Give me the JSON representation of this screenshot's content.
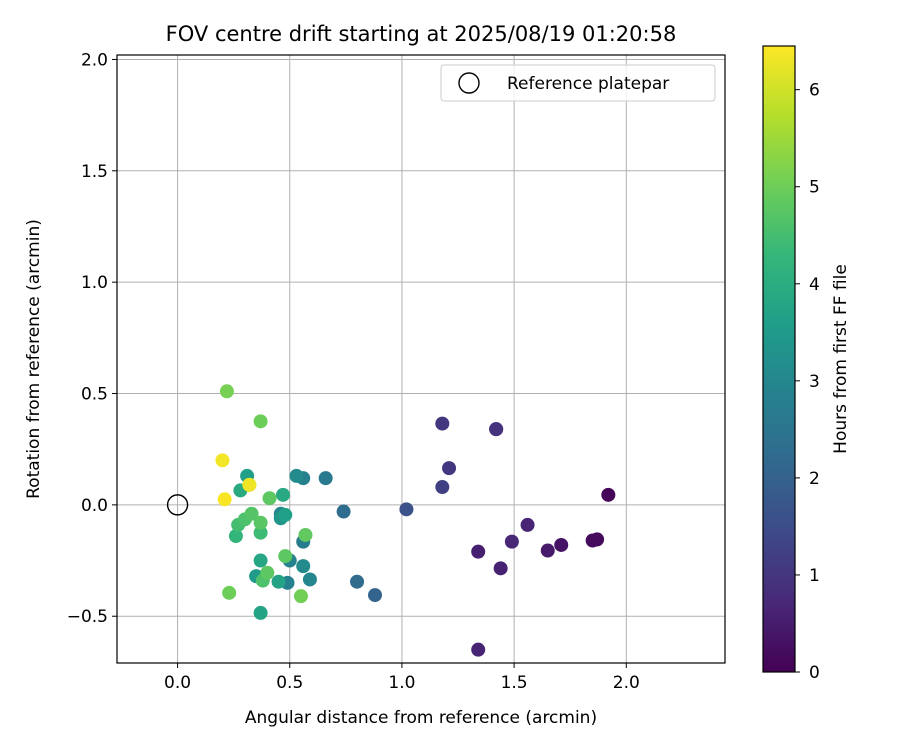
{
  "chart_data": {
    "type": "scatter",
    "title": "FOV centre drift starting at 2025/08/19 01:20:58",
    "xlabel": "Angular distance from reference (arcmin)",
    "ylabel": "Rotation from reference (arcmin)",
    "xlim": [
      -0.27,
      2.44
    ],
    "ylim": [
      -0.71,
      2.02
    ],
    "xticks": [
      0.0,
      0.5,
      1.0,
      1.5,
      2.0
    ],
    "xtick_labels": [
      "0.0",
      "0.5",
      "1.0",
      "1.5",
      "2.0"
    ],
    "yticks": [
      -0.5,
      0.0,
      0.5,
      1.0,
      1.5,
      2.0
    ],
    "ytick_labels": [
      "−0.5",
      "0.0",
      "0.5",
      "1.0",
      "1.5",
      "2.0"
    ],
    "grid": true,
    "legend": {
      "position": "upper right",
      "entries": [
        "Reference platepar"
      ]
    },
    "reference_point": {
      "name": "Reference platepar",
      "x": 0.0,
      "y": 0.0,
      "marker": "open circle",
      "color": "#000000"
    },
    "colorbar": {
      "label": "Hours from first FF file",
      "range": [
        0,
        6.45
      ],
      "ticks": [
        0,
        1,
        2,
        3,
        4,
        5,
        6
      ],
      "tick_labels": [
        "0",
        "1",
        "2",
        "3",
        "4",
        "5",
        "6"
      ],
      "colormap": "viridis"
    },
    "series": [
      {
        "marker": "filled circle",
        "points": [
          {
            "x": 1.92,
            "y": 0.045,
            "c": 0.1
          },
          {
            "x": 1.87,
            "y": -0.155,
            "c": 0.15
          },
          {
            "x": 1.85,
            "y": -0.16,
            "c": 0.2
          },
          {
            "x": 1.71,
            "y": -0.18,
            "c": 0.35
          },
          {
            "x": 1.65,
            "y": -0.205,
            "c": 0.45
          },
          {
            "x": 1.56,
            "y": -0.09,
            "c": 0.65
          },
          {
            "x": 1.49,
            "y": -0.165,
            "c": 0.7
          },
          {
            "x": 1.44,
            "y": -0.285,
            "c": 0.6
          },
          {
            "x": 1.42,
            "y": 0.34,
            "c": 0.75
          },
          {
            "x": 1.42,
            "y": 0.34,
            "c": 0.95
          },
          {
            "x": 1.34,
            "y": -0.21,
            "c": 0.55
          },
          {
            "x": 1.34,
            "y": -0.65,
            "c": 0.65
          },
          {
            "x": 1.21,
            "y": 0.165,
            "c": 1.05
          },
          {
            "x": 1.18,
            "y": 0.365,
            "c": 1.05
          },
          {
            "x": 1.18,
            "y": 0.08,
            "c": 1.2
          },
          {
            "x": 1.02,
            "y": -0.02,
            "c": 1.6
          },
          {
            "x": 0.88,
            "y": -0.405,
            "c": 2.05
          },
          {
            "x": 0.8,
            "y": -0.345,
            "c": 2.25
          },
          {
            "x": 0.74,
            "y": -0.03,
            "c": 2.3
          },
          {
            "x": 0.66,
            "y": 0.12,
            "c": 2.65
          },
          {
            "x": 0.59,
            "y": -0.335,
            "c": 3.0
          },
          {
            "x": 0.56,
            "y": 0.12,
            "c": 2.8
          },
          {
            "x": 0.56,
            "y": -0.165,
            "c": 2.7
          },
          {
            "x": 0.56,
            "y": -0.275,
            "c": 3.1
          },
          {
            "x": 0.53,
            "y": 0.13,
            "c": 3.1
          },
          {
            "x": 0.5,
            "y": -0.25,
            "c": 2.9
          },
          {
            "x": 0.49,
            "y": -0.35,
            "c": 2.85
          },
          {
            "x": 0.46,
            "y": -0.04,
            "c": 3.0
          },
          {
            "x": 0.46,
            "y": -0.06,
            "c": 3.4
          },
          {
            "x": 0.48,
            "y": -0.045,
            "c": 3.6
          },
          {
            "x": 0.47,
            "y": 0.045,
            "c": 3.9
          },
          {
            "x": 0.45,
            "y": -0.345,
            "c": 3.7
          },
          {
            "x": 0.35,
            "y": -0.32,
            "c": 3.5
          },
          {
            "x": 0.37,
            "y": -0.485,
            "c": 3.75
          },
          {
            "x": 0.37,
            "y": -0.25,
            "c": 3.8
          },
          {
            "x": 0.31,
            "y": 0.13,
            "c": 3.6
          },
          {
            "x": 0.28,
            "y": 0.065,
            "c": 3.9
          },
          {
            "x": 0.26,
            "y": -0.14,
            "c": 4.2
          },
          {
            "x": 0.27,
            "y": -0.09,
            "c": 4.5
          },
          {
            "x": 0.3,
            "y": -0.065,
            "c": 4.6
          },
          {
            "x": 0.33,
            "y": -0.04,
            "c": 4.7
          },
          {
            "x": 0.37,
            "y": -0.125,
            "c": 4.4
          },
          {
            "x": 0.37,
            "y": -0.08,
            "c": 4.75
          },
          {
            "x": 0.38,
            "y": -0.34,
            "c": 4.6
          },
          {
            "x": 0.4,
            "y": -0.305,
            "c": 4.8
          },
          {
            "x": 0.41,
            "y": 0.03,
            "c": 4.8
          },
          {
            "x": 0.48,
            "y": -0.23,
            "c": 4.8
          },
          {
            "x": 0.57,
            "y": -0.135,
            "c": 4.85
          },
          {
            "x": 0.55,
            "y": -0.41,
            "c": 5.05
          },
          {
            "x": 0.22,
            "y": 0.51,
            "c": 5.1
          },
          {
            "x": 0.23,
            "y": -0.395,
            "c": 5.0
          },
          {
            "x": 0.37,
            "y": 0.375,
            "c": 5.0
          },
          {
            "x": 0.32,
            "y": 0.09,
            "c": 5.8
          },
          {
            "x": 0.32,
            "y": 0.09,
            "c": 6.3
          },
          {
            "x": 0.2,
            "y": 0.2,
            "c": 6.35
          },
          {
            "x": 0.21,
            "y": 0.025,
            "c": 6.4
          }
        ]
      }
    ]
  }
}
